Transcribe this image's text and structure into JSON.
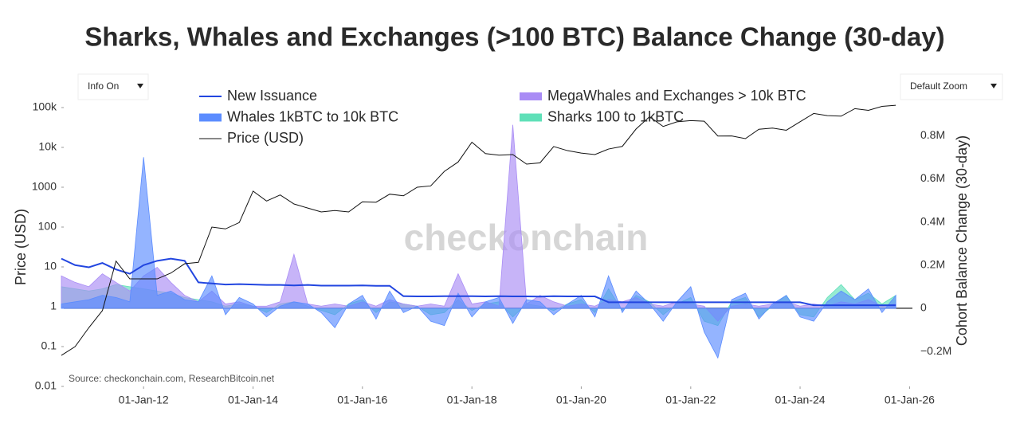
{
  "ui": {
    "info_dropdown": "Info On",
    "zoom_dropdown": "Default Zoom",
    "watermark": "checkonchain"
  },
  "chart_data": {
    "type": "line",
    "title": "Sharks, Whales and Exchanges (>100 BTC) Balance Change (30-day)",
    "source": "Source: checkonchain.com, ResearchBitcoin.net",
    "y_label": "Price (USD)",
    "y2_label": "Cohort Balance Change (30-day)",
    "log_y": true,
    "grid": false,
    "legend": "top",
    "xlim": [
      "2010-07-17",
      "2026-01-20"
    ],
    "xticks": [
      {
        "value": "2012-01-01",
        "label": "01-Jan-12"
      },
      {
        "value": "2014-01-01",
        "label": "01-Jan-14"
      },
      {
        "value": "2016-01-01",
        "label": "01-Jan-16"
      },
      {
        "value": "2018-01-01",
        "label": "01-Jan-18"
      },
      {
        "value": "2020-01-01",
        "label": "01-Jan-20"
      },
      {
        "value": "2022-01-01",
        "label": "01-Jan-22"
      },
      {
        "value": "2024-01-01",
        "label": "01-Jan-24"
      },
      {
        "value": "2026-01-01",
        "label": "01-Jan-26"
      }
    ],
    "ylim": [
      0.01,
      100000
    ],
    "yticks": [
      0.01,
      0.1,
      1,
      10,
      100,
      1000,
      {
        "value": 10000,
        "label": "10k"
      },
      {
        "value": 100000,
        "label": "100k"
      }
    ],
    "y2lim": [
      -362000,
      930000
    ],
    "y2ticks": [
      {
        "value": -200000,
        "label": "−0.2M"
      },
      0,
      {
        "value": 200000,
        "label": "0.2M"
      },
      {
        "value": 400000,
        "label": "0.4M"
      },
      {
        "value": 600000,
        "label": "0.6M"
      },
      {
        "value": 800000,
        "label": "0.8M"
      }
    ],
    "x": [
      "2010-07-01",
      "2010-10-01",
      "2011-01-01",
      "2011-04-01",
      "2011-07-01",
      "2011-10-01",
      "2012-01-01",
      "2012-04-01",
      "2012-07-01",
      "2012-10-01",
      "2013-01-01",
      "2013-04-01",
      "2013-07-01",
      "2013-10-01",
      "2014-01-01",
      "2014-04-01",
      "2014-07-01",
      "2014-10-01",
      "2015-01-01",
      "2015-04-01",
      "2015-07-01",
      "2015-10-01",
      "2016-01-01",
      "2016-04-01",
      "2016-07-01",
      "2016-10-01",
      "2017-01-01",
      "2017-04-01",
      "2017-07-01",
      "2017-10-01",
      "2018-01-01",
      "2018-04-01",
      "2018-07-01",
      "2018-10-01",
      "2019-01-01",
      "2019-04-01",
      "2019-07-01",
      "2019-10-01",
      "2020-01-01",
      "2020-04-01",
      "2020-07-01",
      "2020-10-01",
      "2021-01-01",
      "2021-04-01",
      "2021-07-01",
      "2021-10-01",
      "2022-01-01",
      "2022-04-01",
      "2022-07-01",
      "2022-10-01",
      "2023-01-01",
      "2023-04-01",
      "2023-07-01",
      "2023-10-01",
      "2024-01-01",
      "2024-04-01",
      "2024-07-01",
      "2024-10-01",
      "2025-01-01",
      "2025-04-01",
      "2025-07-01",
      "2025-10-01"
    ],
    "series": [
      {
        "name": "New Issuance",
        "color": "#2246e0",
        "style": "line",
        "axis": "y2",
        "values": [
          230000,
          200000,
          190000,
          210000,
          180000,
          160000,
          200000,
          220000,
          230000,
          220000,
          120000,
          115000,
          110000,
          112000,
          110000,
          108000,
          108000,
          106000,
          108000,
          105000,
          105000,
          105000,
          106000,
          104000,
          104000,
          56000,
          55000,
          55000,
          56000,
          56000,
          56000,
          55000,
          56000,
          55000,
          55000,
          54000,
          56000,
          55000,
          55000,
          55000,
          28000,
          28000,
          28000,
          28000,
          28000,
          28000,
          28000,
          28000,
          28000,
          28000,
          28000,
          28000,
          28000,
          28000,
          28000,
          14000,
          14000,
          14000,
          14000,
          14000,
          14000,
          14000
        ]
      },
      {
        "name": "Whales 1kBTC to 10k BTC",
        "color": "#5b8cff",
        "style": "area",
        "axis": "y2",
        "values": [
          20000,
          30000,
          40000,
          60000,
          50000,
          30000,
          700000,
          60000,
          80000,
          40000,
          30000,
          150000,
          -30000,
          50000,
          20000,
          -40000,
          10000,
          30000,
          20000,
          -20000,
          -90000,
          20000,
          60000,
          -50000,
          80000,
          -20000,
          10000,
          -60000,
          -80000,
          70000,
          -40000,
          30000,
          50000,
          -70000,
          40000,
          30000,
          -30000,
          20000,
          60000,
          -40000,
          150000,
          -20000,
          80000,
          20000,
          -60000,
          30000,
          100000,
          -110000,
          -230000,
          40000,
          70000,
          -50000,
          20000,
          60000,
          -40000,
          -60000,
          30000,
          80000,
          40000,
          90000,
          -20000,
          60000
        ]
      },
      {
        "name": "Price (USD)",
        "color": "#111111",
        "style": "line",
        "axis": "y",
        "values": [
          0.06,
          0.1,
          0.3,
          0.8,
          14,
          5,
          5,
          5,
          7,
          12,
          13,
          100,
          90,
          130,
          800,
          450,
          640,
          380,
          300,
          240,
          260,
          240,
          430,
          420,
          670,
          610,
          1000,
          1080,
          2500,
          4300,
          13500,
          7000,
          6400,
          6600,
          3800,
          4100,
          10500,
          8300,
          7200,
          6600,
          9100,
          10600,
          29000,
          58800,
          33500,
          43800,
          47000,
          45500,
          19300,
          19400,
          16600,
          28500,
          30500,
          27000,
          44000,
          71000,
          62700,
          60800,
          94000,
          85000,
          107000,
          114000
        ]
      },
      {
        "name": "MegaWhales and Exchanges > 10k BTC",
        "color": "#a98cf5",
        "style": "area",
        "axis": "y2",
        "values": [
          150000,
          120000,
          100000,
          160000,
          120000,
          80000,
          150000,
          190000,
          120000,
          60000,
          30000,
          80000,
          20000,
          30000,
          10000,
          10000,
          30000,
          250000,
          20000,
          10000,
          20000,
          10000,
          30000,
          10000,
          40000,
          20000,
          10000,
          20000,
          10000,
          160000,
          20000,
          30000,
          10000,
          850000,
          20000,
          60000,
          30000,
          10000,
          20000,
          10000,
          40000,
          30000,
          50000,
          20000,
          10000,
          30000,
          20000,
          10000,
          -60000,
          10000,
          20000,
          10000,
          20000,
          30000,
          10000,
          20000,
          10000,
          30000,
          20000,
          40000,
          10000,
          20000
        ]
      },
      {
        "name": "Sharks 100 to 1kBTC",
        "color": "#5fe0b8",
        "style": "area",
        "axis": "y2",
        "values": [
          100000,
          90000,
          80000,
          90000,
          110000,
          100000,
          90000,
          80000,
          70000,
          50000,
          40000,
          30000,
          10000,
          20000,
          10000,
          -20000,
          20000,
          30000,
          10000,
          -10000,
          -30000,
          20000,
          40000,
          -20000,
          30000,
          20000,
          10000,
          -30000,
          -20000,
          40000,
          -10000,
          20000,
          30000,
          -40000,
          20000,
          10000,
          -10000,
          20000,
          40000,
          -20000,
          90000,
          -10000,
          60000,
          30000,
          -30000,
          20000,
          50000,
          -60000,
          -80000,
          30000,
          50000,
          -40000,
          10000,
          60000,
          -30000,
          -40000,
          50000,
          110000,
          40000,
          70000,
          20000,
          60000
        ]
      }
    ]
  }
}
